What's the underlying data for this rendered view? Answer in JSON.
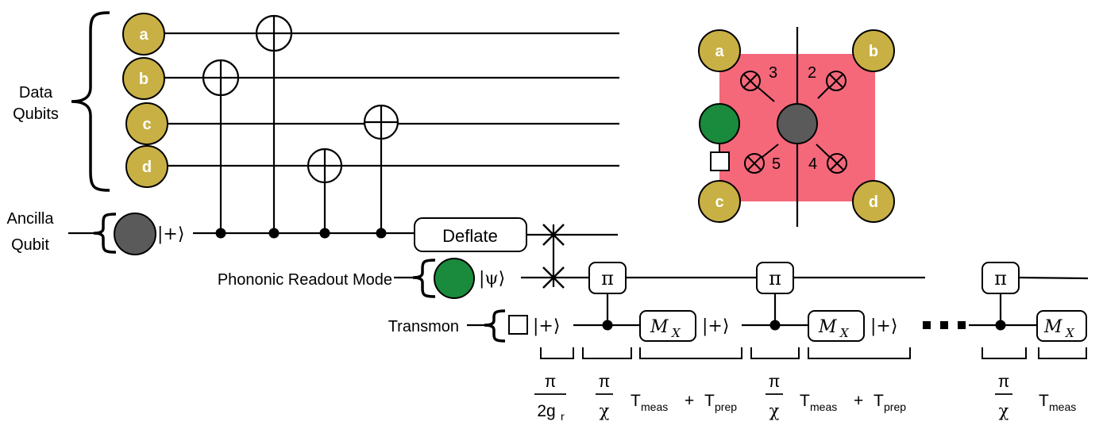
{
  "labels": {
    "data_qubits_line1": "Data",
    "data_qubits_line2": "Qubits",
    "ancilla_line1": "Ancilla",
    "ancilla_line2": "Qubit",
    "phononic": "Phononic Readout Mode",
    "transmon": "Transmon"
  },
  "qubits": {
    "a": "a",
    "b": "b",
    "c": "c",
    "d": "d"
  },
  "kets": {
    "plus": "|+⟩",
    "psi": "|ψ⟩"
  },
  "gates": {
    "deflate": "Deflate",
    "pi": "π",
    "mx_main": "M",
    "mx_sub": "X"
  },
  "inset": {
    "qubits": [
      "a",
      "b",
      "c",
      "d"
    ],
    "order_numbers": [
      "3",
      "2",
      "5",
      "4"
    ]
  },
  "timing": {
    "pi": "π",
    "two_g": "2g",
    "r_sub": "r",
    "chi": "χ",
    "T": "T",
    "meas_sub": "meas",
    "plus": "+",
    "prep_sub": "prep"
  },
  "colors": {
    "data_qubit": "#c8b045",
    "ancilla": "#5a5a5a",
    "phononic": "#1a8a3c",
    "plaquette": "#f4687a"
  }
}
